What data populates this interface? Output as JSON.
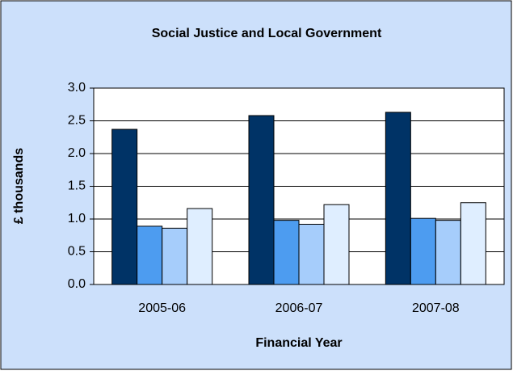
{
  "chart_data": {
    "type": "bar",
    "title": "Social Justice and Local Government",
    "x_label": "Financial Year",
    "y_label": "£ thousands",
    "categories": [
      "2005-06",
      "2006-07",
      "2007-08"
    ],
    "series": [
      {
        "color": "#003366",
        "values": [
          2.37,
          2.58,
          2.63
        ]
      },
      {
        "color": "#4d9cf0",
        "values": [
          0.89,
          0.98,
          1.01
        ]
      },
      {
        "color": "#a6cdfb",
        "values": [
          0.86,
          0.92,
          0.98
        ]
      },
      {
        "color": "#dfeeff",
        "values": [
          1.16,
          1.22,
          1.25
        ]
      }
    ],
    "ylim": [
      0,
      3
    ],
    "yticks": [
      {
        "value": 0,
        "label": "0.0"
      },
      0.5,
      {
        "value": 1,
        "label": "1.0"
      },
      1.5,
      {
        "value": 2,
        "label": "2.0"
      },
      2.5,
      {
        "value": 3,
        "label": "3.0"
      }
    ],
    "grid": true
  }
}
